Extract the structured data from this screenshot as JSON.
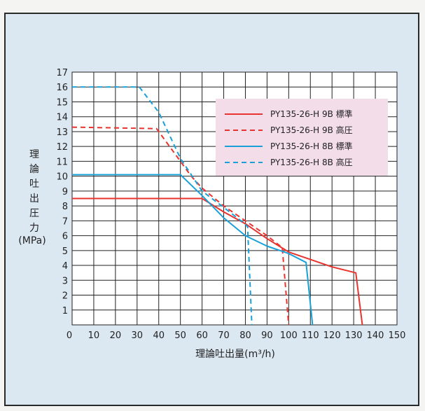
{
  "chart_data": {
    "type": "line",
    "title": "",
    "xlabel": "理論吐出量(m³/h)",
    "ylabel_chars": [
      "理",
      "論",
      "吐",
      "出",
      "圧",
      "力"
    ],
    "ylabel_unit": "(MPa)",
    "xlim": [
      0,
      150
    ],
    "ylim": [
      0,
      17
    ],
    "x_ticks": [
      0,
      10,
      20,
      30,
      40,
      50,
      60,
      70,
      80,
      90,
      100,
      110,
      120,
      130,
      140,
      150
    ],
    "y_ticks": [
      1,
      2,
      3,
      4,
      5,
      6,
      7,
      8,
      9,
      10,
      11,
      12,
      13,
      14,
      15,
      16,
      17
    ],
    "grid": true,
    "legend_position": "top-right",
    "series": [
      {
        "name": "PY135-26-H 9B 標準",
        "color": "#e8332f",
        "dash": false,
        "points": [
          [
            0,
            8.5
          ],
          [
            60,
            8.5
          ],
          [
            70,
            7.6
          ],
          [
            80,
            6.8
          ],
          [
            90,
            5.8
          ],
          [
            100,
            4.9
          ],
          [
            110,
            4.4
          ],
          [
            120,
            3.9
          ],
          [
            131,
            3.5
          ],
          [
            134,
            0
          ]
        ]
      },
      {
        "name": "PY135-26-H 9B 高圧",
        "color": "#e8332f",
        "dash": true,
        "points": [
          [
            0,
            13.3
          ],
          [
            39,
            13.2
          ],
          [
            45,
            12.0
          ],
          [
            50,
            11.0
          ],
          [
            55,
            10.0
          ],
          [
            60,
            9.2
          ],
          [
            70,
            8.0
          ],
          [
            80,
            7.0
          ],
          [
            90,
            6.0
          ],
          [
            97,
            5.2
          ],
          [
            100,
            0
          ]
        ]
      },
      {
        "name": "PY135-26-H 8B 標準",
        "color": "#1aa0d8",
        "dash": false,
        "points": [
          [
            0,
            10.1
          ],
          [
            50,
            10.1
          ],
          [
            60,
            8.7
          ],
          [
            70,
            7.2
          ],
          [
            80,
            6.0
          ],
          [
            90,
            5.3
          ],
          [
            100,
            4.8
          ],
          [
            108,
            4.2
          ],
          [
            111,
            0
          ]
        ]
      },
      {
        "name": "PY135-26-H 8B 高圧",
        "color": "#1aa0d8",
        "dash": true,
        "points": [
          [
            0,
            16.0
          ],
          [
            31,
            16.0
          ],
          [
            40,
            14.3
          ],
          [
            50,
            11.2
          ],
          [
            60,
            9.0
          ],
          [
            70,
            7.9
          ],
          [
            78,
            7.0
          ],
          [
            81,
            6.6
          ],
          [
            83,
            0
          ]
        ]
      }
    ]
  }
}
